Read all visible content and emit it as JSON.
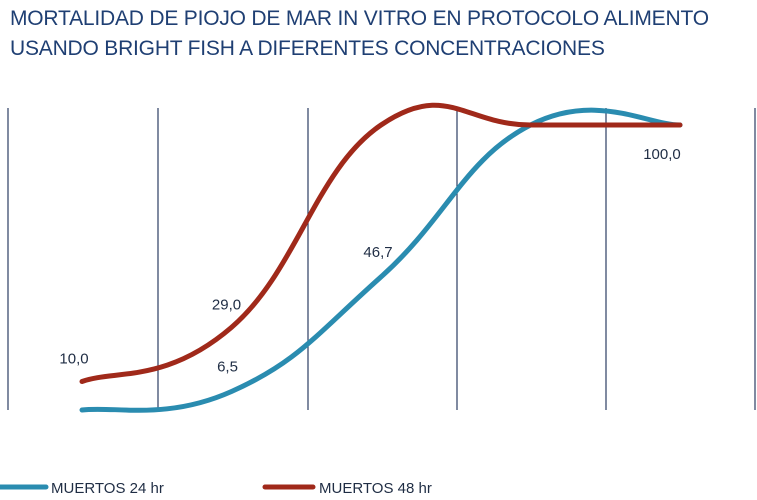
{
  "chart_data": {
    "type": "line",
    "title_line1": "MORTALIDAD DE PIOJO DE MAR  IN VITRO EN PROTOCOLO ALIMENTO",
    "title_line2": "USANDO BRIGHT FISH A DIFERENTES CONCENTRACIONES",
    "ylim": [
      0,
      105
    ],
    "x_count": 5,
    "series": [
      {
        "name": "MUERTOS 24 hr",
        "color": "#2a8cb0",
        "values": [
          0.0,
          6.5,
          46.7,
          100.0,
          100.0
        ],
        "labels": [
          "",
          "6,5",
          "46,7",
          "",
          "100,0"
        ]
      },
      {
        "name": "MUERTOS 48 hr",
        "color": "#a0291a",
        "values": [
          10.0,
          29.0,
          100.0,
          100.0,
          100.0
        ],
        "labels": [
          "10,0",
          "29,0",
          "",
          "",
          ""
        ]
      }
    ],
    "grid": "vertical",
    "legend": "bottom"
  }
}
